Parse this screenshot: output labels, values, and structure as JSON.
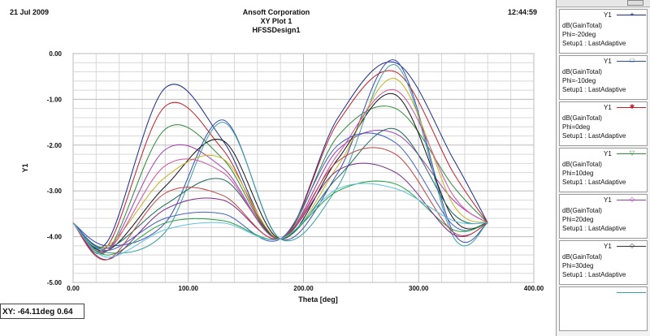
{
  "header": {
    "date": "21 Jul 2009",
    "company": "Ansoft Corporation",
    "plot_title": "XY Plot 1",
    "design": "HFSSDesign1",
    "time": "12:44:59"
  },
  "readout": {
    "text": "XY: -64.11deg 0.64"
  },
  "legend": {
    "items": [
      {
        "y": "Y1",
        "quantity": "dB(GainTotal)",
        "param": "Phi=-20deg",
        "setup": "Setup1 : LastAdaptive",
        "color": "#1a2a8c",
        "marker": "+"
      },
      {
        "y": "Y1",
        "quantity": "dB(GainTotal)",
        "param": "Phi=-10deg",
        "setup": "Setup1 : LastAdaptive",
        "color": "#2a4aa0",
        "marker": "□"
      },
      {
        "y": "Y1",
        "quantity": "dB(GainTotal)",
        "param": "Phi=0deg",
        "setup": "Setup1 : LastAdaptive",
        "color": "#c0202a",
        "marker": "✱"
      },
      {
        "y": "Y1",
        "quantity": "dB(GainTotal)",
        "param": "Phi=10deg",
        "setup": "Setup1 : LastAdaptive",
        "color": "#2f8a3a",
        "marker": "▽"
      },
      {
        "y": "Y1",
        "quantity": "dB(GainTotal)",
        "param": "Phi=20deg",
        "setup": "Setup1 : LastAdaptive",
        "color": "#a03ab0",
        "marker": "◇"
      },
      {
        "y": "Y1",
        "quantity": "dB(GainTotal)",
        "param": "Phi=30deg",
        "setup": "Setup1 : LastAdaptive",
        "color": "#333333",
        "marker": "◇"
      },
      {
        "y": "",
        "quantity": "",
        "param": "",
        "setup": "",
        "color": "#3aa0a0",
        "marker": ""
      }
    ]
  },
  "chart_data": {
    "type": "line",
    "title": "XY Plot 1",
    "xlabel": "Theta [deg]",
    "ylabel": "Y1",
    "xlim": [
      0,
      400
    ],
    "ylim": [
      -5,
      0
    ],
    "xticks": [
      0,
      100,
      200,
      300,
      400
    ],
    "xtick_labels": [
      "0.00",
      "100.00",
      "200.00",
      "300.00",
      "400.00"
    ],
    "yticks": [
      0,
      -1,
      -2,
      -3,
      -4,
      -5
    ],
    "ytick_labels": [
      "0.00",
      "-1.00",
      "-2.00",
      "-3.00",
      "-4.00",
      "-5.00"
    ],
    "grid": true,
    "legend_position": "right",
    "x": [
      0,
      30,
      80,
      130,
      180,
      230,
      280,
      330,
      360
    ],
    "series": [
      {
        "color": "#1a2a8c",
        "values": [
          -3.7,
          -4.1,
          -0.75,
          -1.9,
          -4.05,
          -1.4,
          -0.2,
          -2.3,
          -3.7
        ]
      },
      {
        "color": "#3a4ab8",
        "values": [
          -3.7,
          -4.2,
          -3.7,
          -1.45,
          -4.05,
          -2.6,
          -0.15,
          -3.9,
          -3.7
        ]
      },
      {
        "color": "#c0202a",
        "values": [
          -3.7,
          -4.2,
          -1.15,
          -2.1,
          -4.05,
          -1.5,
          -0.4,
          -2.6,
          -3.7
        ]
      },
      {
        "color": "#2f8a3a",
        "values": [
          -3.7,
          -4.3,
          -1.65,
          -2.3,
          -4.05,
          -1.8,
          -1.2,
          -2.9,
          -3.7
        ]
      },
      {
        "color": "#a03ab0",
        "values": [
          -3.7,
          -4.3,
          -2.1,
          -2.5,
          -4.05,
          -2.1,
          -1.75,
          -3.2,
          -3.7
        ]
      },
      {
        "color": "#111111",
        "values": [
          -3.7,
          -4.3,
          -2.9,
          -1.9,
          -4.05,
          -2.3,
          -0.9,
          -3.6,
          -3.7
        ]
      },
      {
        "color": "#3aa0a0",
        "values": [
          -3.7,
          -4.35,
          -3.9,
          -1.5,
          -4.05,
          -2.9,
          -0.25,
          -4.0,
          -3.7
        ]
      },
      {
        "color": "#c8b020",
        "values": [
          -3.7,
          -4.2,
          -2.7,
          -2.3,
          -4.05,
          -2.45,
          -0.55,
          -3.3,
          -3.7
        ]
      },
      {
        "color": "#1a6a5a",
        "values": [
          -3.7,
          -4.25,
          -3.3,
          -2.75,
          -4.05,
          -2.7,
          -1.65,
          -3.5,
          -3.7
        ]
      },
      {
        "color": "#d050a0",
        "values": [
          -3.7,
          -4.3,
          -2.45,
          -2.6,
          -4.05,
          -2.2,
          -0.8,
          -3.1,
          -3.7
        ]
      },
      {
        "color": "#4060c0",
        "values": [
          -3.7,
          -4.3,
          -3.6,
          -3.5,
          -4.05,
          -2.0,
          -1.95,
          -3.75,
          -3.7
        ]
      },
      {
        "color": "#20a040",
        "values": [
          -3.7,
          -4.4,
          -3.7,
          -3.65,
          -4.05,
          -3.0,
          -2.85,
          -3.85,
          -3.7
        ]
      },
      {
        "color": "#7a2a8a",
        "values": [
          -3.7,
          -4.5,
          -3.4,
          -3.2,
          -4.05,
          -2.55,
          -2.6,
          -3.95,
          -3.7
        ]
      },
      {
        "color": "#c04040",
        "values": [
          -3.7,
          -4.5,
          -3.05,
          -3.1,
          -4.05,
          -2.35,
          -2.2,
          -3.9,
          -3.7
        ]
      },
      {
        "color": "#60c0e0",
        "values": [
          -3.7,
          -4.45,
          -3.85,
          -3.7,
          -4.05,
          -2.95,
          -2.95,
          -3.65,
          -3.7
        ]
      }
    ]
  }
}
